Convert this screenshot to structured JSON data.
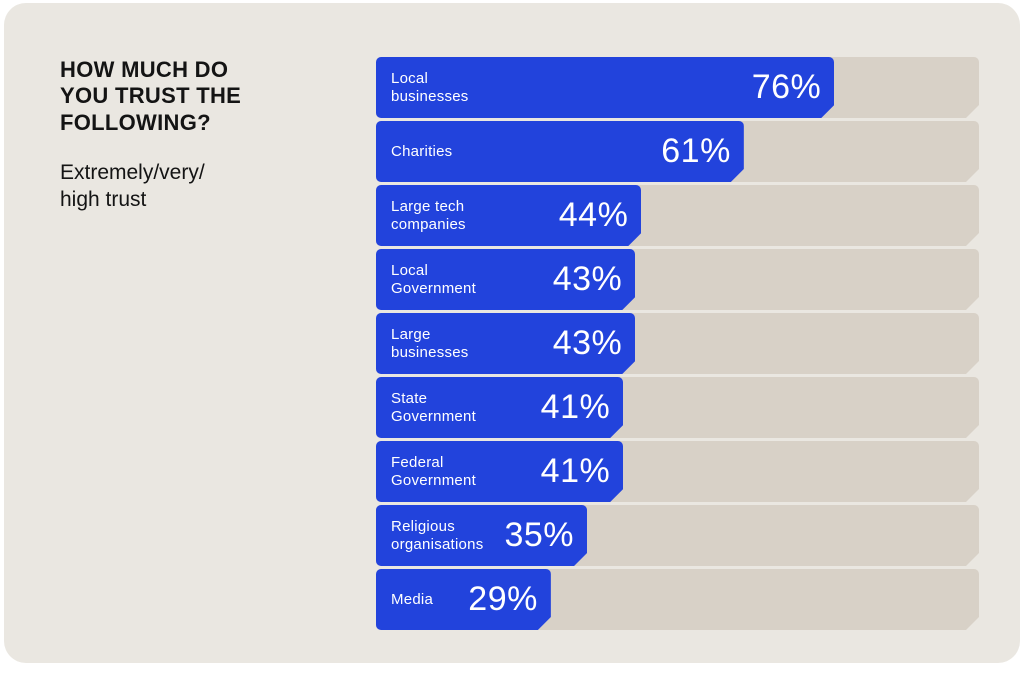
{
  "header": {
    "title": "HOW MUCH DO\nYOU TRUST THE\nFOLLOWING?",
    "subtitle": "Extremely/very/\nhigh trust"
  },
  "chart_data": {
    "type": "bar",
    "orientation": "horizontal",
    "title": "HOW MUCH DO YOU TRUST THE FOLLOWING?",
    "subtitle": "Extremely/very/high trust",
    "categories": [
      "Local businesses",
      "Charities",
      "Large tech companies",
      "Local Government",
      "Large businesses",
      "State Government",
      "Federal Government",
      "Religious organisations",
      "Media"
    ],
    "values": [
      76,
      61,
      44,
      43,
      43,
      41,
      41,
      35,
      29
    ],
    "value_suffix": "%",
    "xlim": [
      0,
      100
    ],
    "grid": false,
    "legend": "none",
    "colors": {
      "bar": "#2243dc",
      "track": "#d8d1c7",
      "card_bg": "#eae7e1",
      "page_bg": "#ffffff",
      "title_text": "#141414",
      "bar_text": "#ffffff"
    }
  }
}
